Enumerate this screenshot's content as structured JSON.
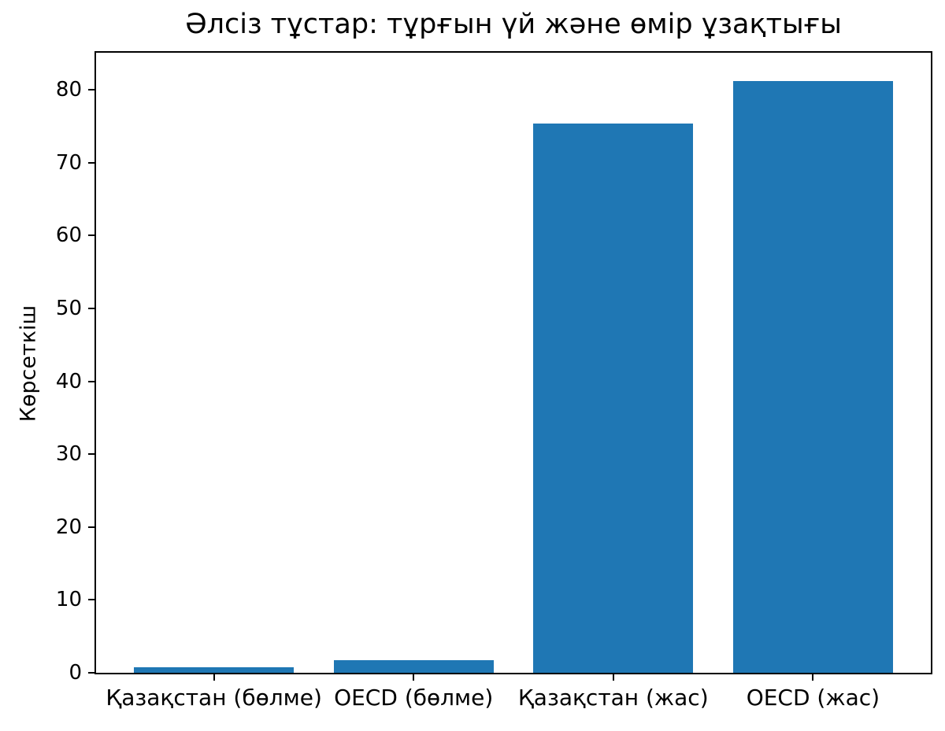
{
  "chart_data": {
    "type": "bar",
    "title": "Әлсіз тұстар: тұрғын үй және өмір ұзақтығы",
    "ylabel": "Көрсеткіш",
    "xlabel": "",
    "categories": [
      "Қазақстан (бөлме)",
      "OECD (бөлме)",
      "Қазақстан (жас)",
      "OECD (жас)"
    ],
    "values": [
      0.8,
      1.7,
      75.4,
      81.2
    ],
    "yticks": [
      0,
      10,
      20,
      30,
      40,
      50,
      60,
      70,
      80
    ],
    "ylim": [
      0,
      85.1
    ],
    "bar_color": "#1f77b4",
    "grid": false,
    "legend_position": "none",
    "background_color": "#ffffff",
    "text_color": "#000000"
  }
}
